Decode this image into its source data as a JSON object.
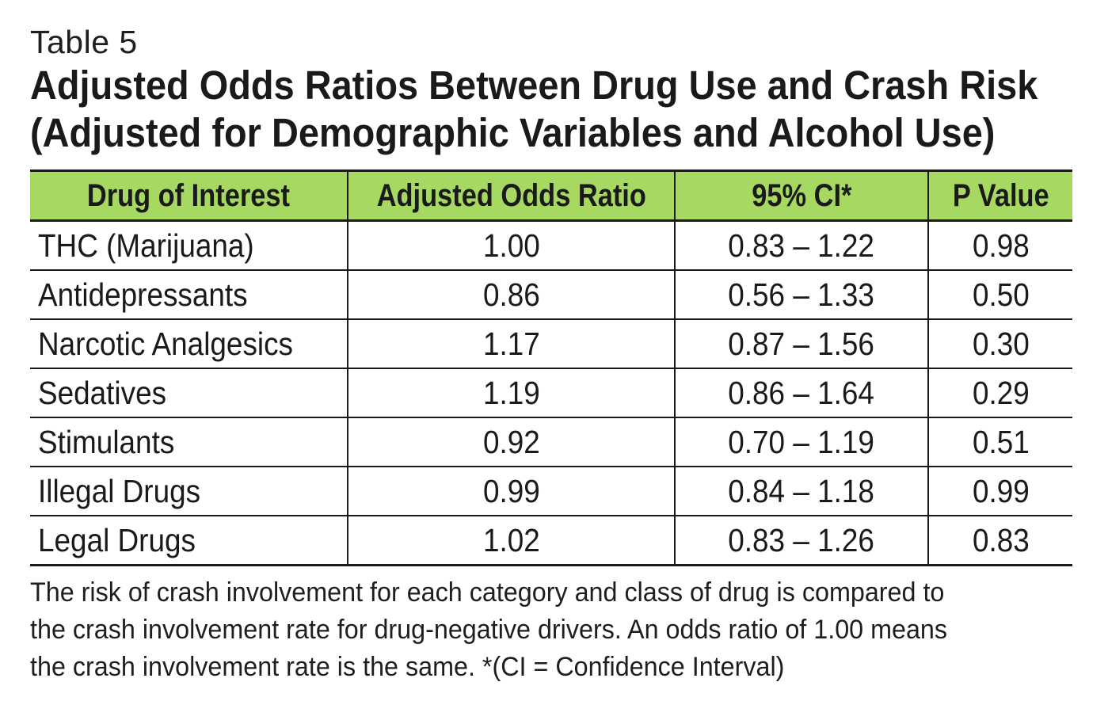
{
  "table_label": "Table 5",
  "title": {
    "line1": "Adjusted Odds Ratios Between Drug Use and Crash Risk",
    "line2": "(Adjusted for Demographic Variables and Alcohol Use)"
  },
  "colors": {
    "header_bg": "#a7d962",
    "rule": "#1a1a1a"
  },
  "table": {
    "headers": [
      "Drug of Interest",
      "Adjusted Odds Ratio",
      "95% CI*",
      "P Value"
    ],
    "rows": [
      [
        "THC (Marijuana)",
        "1.00",
        "0.83 – 1.22",
        "0.98"
      ],
      [
        "Antidepressants",
        "0.86",
        "0.56 – 1.33",
        "0.50"
      ],
      [
        "Narcotic Analgesics",
        "1.17",
        "0.87 – 1.56",
        "0.30"
      ],
      [
        "Sedatives",
        "1.19",
        "0.86 – 1.64",
        "0.29"
      ],
      [
        "Stimulants",
        "0.92",
        "0.70 – 1.19",
        "0.51"
      ],
      [
        "Illegal Drugs",
        "0.99",
        "0.84 – 1.18",
        "0.99"
      ],
      [
        "Legal Drugs",
        "1.02",
        "0.83 – 1.26",
        "0.83"
      ]
    ]
  },
  "note": {
    "line1": "The risk of crash involvement for each category and class of drug is compared to",
    "line2": "the crash involvement rate for drug-negative drivers. An odds ratio of 1.00 means",
    "line3": "the crash involvement rate is the same.   *(CI = Confidence Interval)"
  }
}
